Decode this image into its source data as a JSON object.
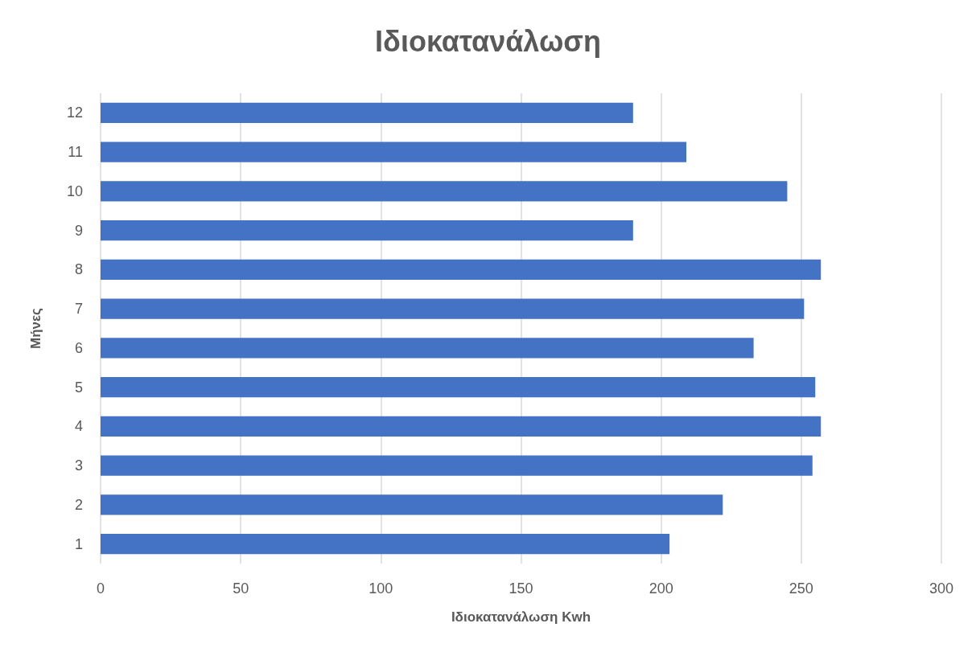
{
  "chart_data": {
    "type": "bar",
    "orientation": "horizontal",
    "title": "Ιδιοκατανάλωση",
    "xlabel": "Ιδιοκατανάλωση Kwh",
    "ylabel": "Μήνες",
    "categories": [
      "12",
      "11",
      "10",
      "9",
      "8",
      "7",
      "6",
      "5",
      "4",
      "3",
      "2",
      "1"
    ],
    "values": [
      190,
      209,
      245,
      190,
      257,
      251,
      233,
      255,
      257,
      254,
      222,
      203
    ],
    "color": "#4472c4",
    "xlim": [
      0,
      300
    ],
    "xticks": [
      0,
      50,
      100,
      150,
      200,
      250,
      300
    ],
    "grid": "x"
  }
}
